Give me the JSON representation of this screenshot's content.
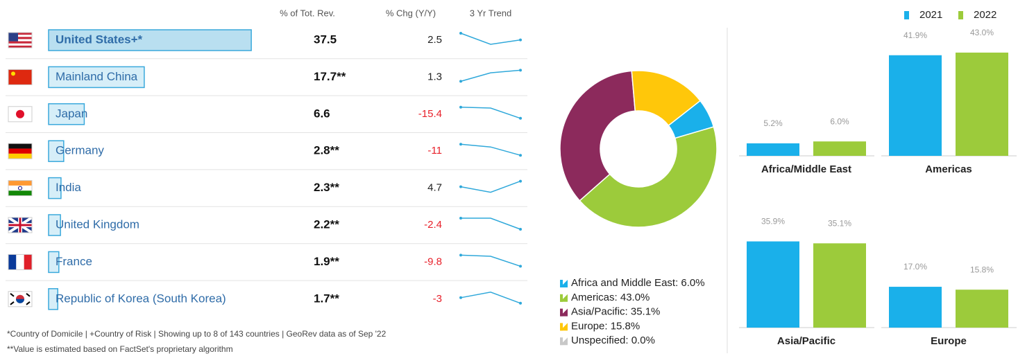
{
  "table": {
    "headers": [
      "% of Tot. Rev.",
      "% Chg (Y/Y)",
      "3 Yr Trend"
    ],
    "rows": [
      {
        "country": "United States+*",
        "share": {
          "value": 37.5,
          "label": "37.5"
        },
        "change": 2.5,
        "trend": [
          38.5,
          36.0,
          37.0
        ]
      },
      {
        "country": "Mainland China",
        "share": {
          "value": 17.7,
          "label": "17.7**"
        },
        "change": 1.3,
        "trend": [
          16.0,
          17.3,
          17.7
        ]
      },
      {
        "country": "Japan",
        "share": {
          "value": 6.6,
          "label": "6.6"
        },
        "change": -15.4,
        "trend": [
          7.9,
          7.8,
          6.6
        ]
      },
      {
        "country": "Germany",
        "share": {
          "value": 2.8,
          "label": "2.8**"
        },
        "change": -11.0,
        "trend": [
          3.2,
          3.1,
          2.8
        ]
      },
      {
        "country": "India",
        "share": {
          "value": 2.3,
          "label": "2.3**"
        },
        "change": 4.7,
        "trend": [
          2.2,
          2.1,
          2.3
        ]
      },
      {
        "country": "United Kingdom",
        "share": {
          "value": 2.2,
          "label": "2.2**"
        },
        "change": -2.4,
        "trend": [
          2.3,
          2.3,
          2.2
        ]
      },
      {
        "country": "France",
        "share": {
          "value": 1.9,
          "label": "1.9**"
        },
        "change": -9.8,
        "trend": [
          2.1,
          2.08,
          1.9
        ]
      },
      {
        "country": "Republic of Korea (South Korea)",
        "share": {
          "value": 1.7,
          "label": "1.7**"
        },
        "change": -3.0,
        "trend": [
          1.75,
          1.8,
          1.7
        ]
      }
    ],
    "footnotes": [
      "*Country of Domicile | +Country of Risk | Showing up to 8 of 143 countries | GeoRev data as of Sep '22",
      "**Value is estimated based on FactSet's proprietary algorithm"
    ]
  },
  "chart_data": [
    {
      "type": "donut",
      "labels": [
        "Africa and Middle East: 6.0%",
        "Americas: 43.0%",
        "Asia/Pacific: 35.1%",
        "Europe: 15.8%",
        "Unspecified: 0.0%"
      ],
      "values": [
        6.0,
        43.0,
        35.1,
        15.8,
        0.0
      ],
      "colors": [
        "#1ab0ea",
        "#9ccb3b",
        "#8c2a5c",
        "#ffc70a",
        "#c8c8c8"
      ]
    },
    {
      "type": "bar",
      "categories": [
        "Africa/Middle East",
        "Americas",
        "Asia/Pacific",
        "Europe"
      ],
      "ylim": [
        0,
        45
      ],
      "series": [
        {
          "name": "2021",
          "color": "#1ab0ea",
          "values": [
            5.2,
            41.9,
            35.9,
            17.0
          ],
          "value_labels": [
            "5.2%",
            "41.9%",
            "35.9%",
            "17.0%"
          ]
        },
        {
          "name": "2022",
          "color": "#9ccb3b",
          "values": [
            6.0,
            43.0,
            35.1,
            15.8
          ],
          "value_labels": [
            "6.0%",
            "43.0%",
            "35.1%",
            "15.8%"
          ]
        }
      ]
    }
  ]
}
